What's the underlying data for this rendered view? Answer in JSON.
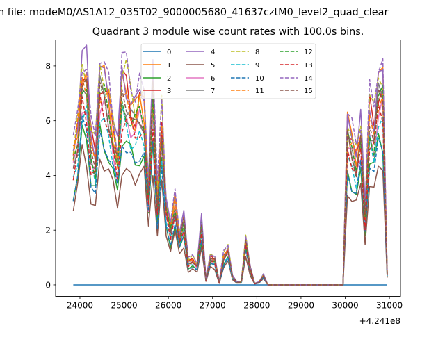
{
  "chart_data": {
    "type": "line",
    "suptitle": "n file: modeM0/AS1A12_035T02_9000005680_41637cztM0_level2_quad_clear",
    "title": "Quadrant 3 module wise count rates with 100.0s bins.",
    "xlabel": "",
    "ylabel": "",
    "x_offset_label": "+4.241e8",
    "xlim": [
      23450,
      31250
    ],
    "ylim": [
      -0.42,
      8.95
    ],
    "xticks": [
      24000,
      25000,
      26000,
      27000,
      28000,
      29000,
      30000,
      31000
    ],
    "xtick_labels": [
      "24000",
      "25000",
      "26000",
      "27000",
      "28000",
      "29000",
      "30000",
      "31000"
    ],
    "yticks": [
      0,
      2,
      4,
      6,
      8
    ],
    "ytick_labels": [
      "0",
      "2",
      "4",
      "6",
      "8"
    ],
    "legend_position": "top-center",
    "x_start": 23850,
    "x_step": 100,
    "base_profile": [
      4.5,
      5.5,
      7.5,
      7.2,
      5.0,
      4.5,
      7.3,
      7.0,
      6.5,
      5.5,
      4.5,
      7.0,
      6.8,
      6.3,
      6.0,
      6.5,
      6.3,
      3.3,
      7.0,
      3.0,
      5.8,
      2.8,
      2.0,
      3.0,
      1.7,
      2.3,
      0.8,
      0.9,
      0.7,
      2.2,
      0.2,
      1.0,
      0.9,
      0.1,
      1.0,
      1.3,
      0.3,
      0.1,
      0.1,
      1.6,
      0.6,
      0.05,
      0.1,
      0.35,
      0,
      0,
      0,
      0,
      0,
      0,
      0,
      0,
      0,
      0,
      0,
      0,
      0,
      0,
      0,
      0,
      0,
      0,
      5.5,
      5.0,
      4.5,
      5.5,
      2.5,
      6.0,
      5.5,
      7.0,
      7.0,
      0.4
    ],
    "series": [
      {
        "name": "0",
        "color": "#1f77b4",
        "dash": false,
        "scale": 0.0
      },
      {
        "name": "1",
        "color": "#ff7f0e",
        "dash": false,
        "scale": 1.05
      },
      {
        "name": "2",
        "color": "#2ca02c",
        "dash": false,
        "scale": 0.75
      },
      {
        "name": "3",
        "color": "#d62728",
        "dash": false,
        "scale": 1.05
      },
      {
        "name": "4",
        "color": "#9467bd",
        "dash": false,
        "scale": 1.1
      },
      {
        "name": "5",
        "color": "#8c564b",
        "dash": false,
        "scale": 0.63
      },
      {
        "name": "6",
        "color": "#e377c2",
        "dash": false,
        "scale": 0.9
      },
      {
        "name": "7",
        "color": "#7f7f7f",
        "dash": false,
        "scale": 0.95
      },
      {
        "name": "8",
        "color": "#bcbd22",
        "dash": true,
        "scale": 1.1
      },
      {
        "name": "9",
        "color": "#17becf",
        "dash": true,
        "scale": 0.85
      },
      {
        "name": "10",
        "color": "#1f77b4",
        "dash": true,
        "scale": 0.75
      },
      {
        "name": "11",
        "color": "#ff7f0e",
        "dash": true,
        "scale": 1.0
      },
      {
        "name": "12",
        "color": "#2ca02c",
        "dash": true,
        "scale": 0.95
      },
      {
        "name": "13",
        "color": "#d62728",
        "dash": true,
        "scale": 0.88
      },
      {
        "name": "14",
        "color": "#9467bd",
        "dash": true,
        "scale": 1.15
      },
      {
        "name": "15",
        "color": "#8c564b",
        "dash": true,
        "scale": 0.97
      }
    ]
  }
}
